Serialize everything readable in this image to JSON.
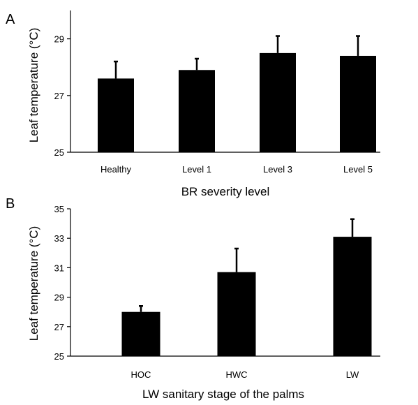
{
  "chart_data": [
    {
      "type": "bar",
      "panel": "A",
      "categories": [
        "Healthy",
        "Level 1",
        "Level 3",
        "Level 5"
      ],
      "values": [
        27.6,
        27.9,
        28.5,
        28.4
      ],
      "error": [
        0.6,
        0.4,
        0.6,
        0.7
      ],
      "xlabel": "BR severity level",
      "ylabel": "Leaf temperature (°C)",
      "ylim": [
        25,
        30
      ],
      "yticks": [
        25,
        27,
        29
      ],
      "grid": false
    },
    {
      "type": "bar",
      "panel": "B",
      "categories": [
        "HOC",
        "HWC",
        "LW"
      ],
      "values": [
        28.0,
        30.7,
        33.1
      ],
      "error": [
        0.4,
        1.6,
        1.2
      ],
      "xlabel": "LW sanitary stage of the palms",
      "ylabel": "Leaf temperature (°C)",
      "ylim": [
        25,
        35
      ],
      "yticks": [
        25,
        27,
        29,
        31,
        33,
        35
      ],
      "grid": false
    }
  ]
}
